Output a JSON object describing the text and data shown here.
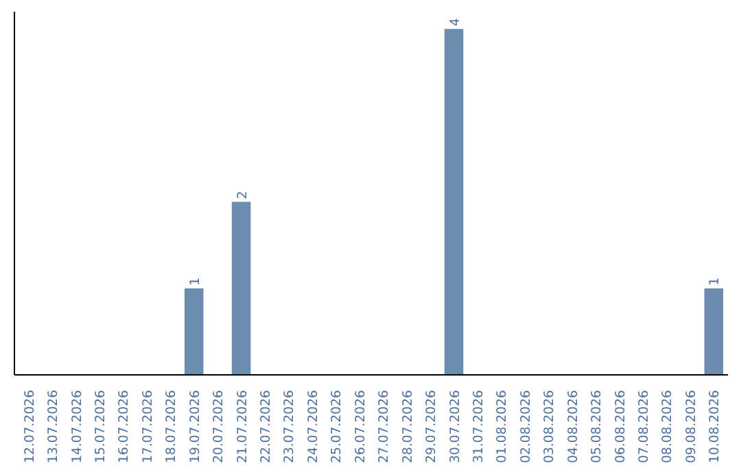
{
  "chart_data": {
    "type": "bar",
    "categories": [
      "12.07.2026",
      "13.07.2026",
      "14.07.2026",
      "15.07.2026",
      "16.07.2026",
      "17.07.2026",
      "18.07.2026",
      "19.07.2026",
      "20.07.2026",
      "21.07.2026",
      "22.07.2026",
      "23.07.2026",
      "24.07.2026",
      "25.07.2026",
      "26.07.2026",
      "27.07.2026",
      "28.07.2026",
      "29.07.2026",
      "30.07.2026",
      "31.07.2026",
      "01.08.2026",
      "02.08.2026",
      "03.08.2026",
      "04.08.2026",
      "05.08.2026",
      "06.08.2026",
      "07.08.2026",
      "08.08.2026",
      "09.08.2026",
      "10.08.2026"
    ],
    "values": [
      0,
      0,
      0,
      0,
      0,
      0,
      0,
      1,
      0,
      2,
      0,
      0,
      0,
      0,
      0,
      0,
      0,
      0,
      4,
      0,
      0,
      0,
      0,
      0,
      0,
      0,
      0,
      0,
      0,
      1
    ],
    "value_labels": [
      null,
      null,
      null,
      null,
      null,
      null,
      null,
      "1",
      null,
      "2",
      null,
      null,
      null,
      null,
      null,
      null,
      null,
      null,
      "4",
      null,
      null,
      null,
      null,
      null,
      null,
      null,
      null,
      null,
      null,
      "1"
    ],
    "color": "#6b8cae"
  }
}
